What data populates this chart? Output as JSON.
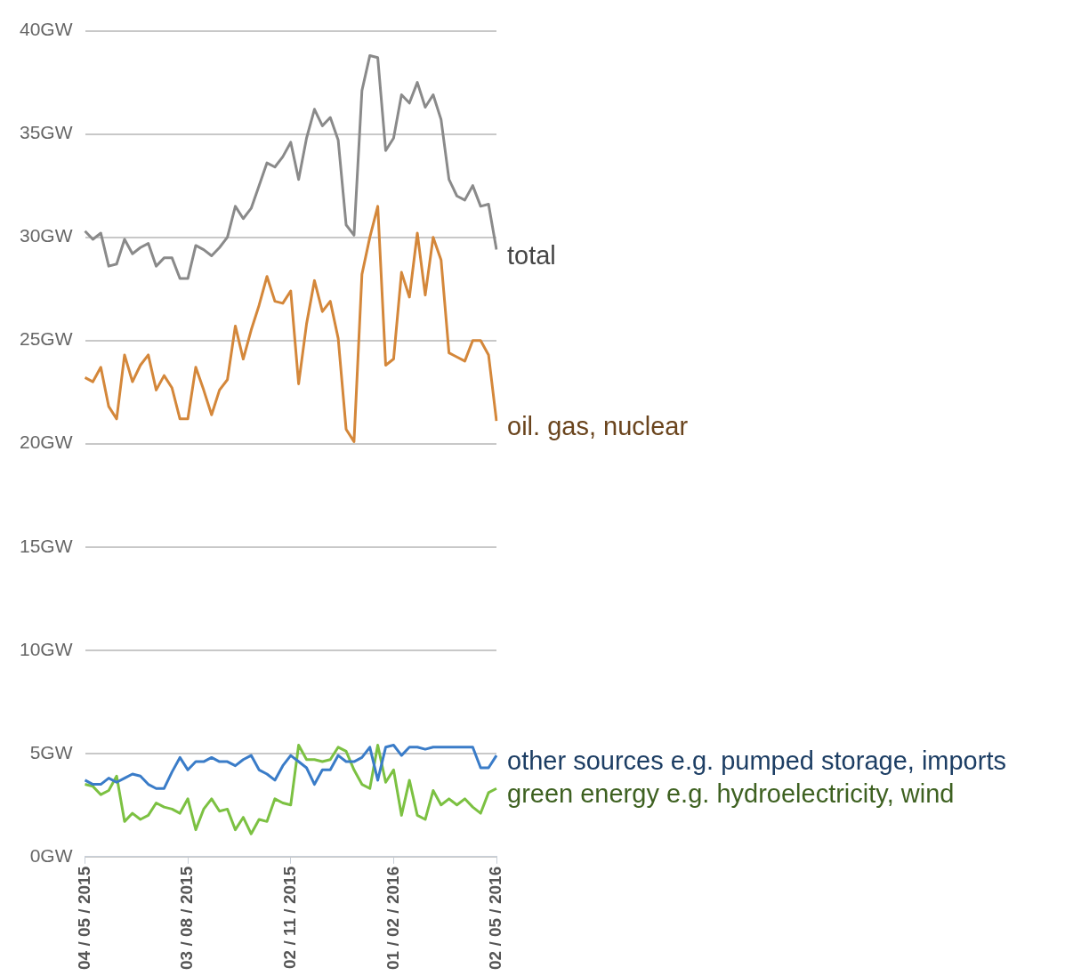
{
  "chart_data": {
    "type": "line",
    "categories": [
      "04 / 05 / 2015",
      null,
      null,
      null,
      null,
      null,
      null,
      null,
      null,
      null,
      null,
      null,
      null,
      "03 / 08 / 2015",
      null,
      null,
      null,
      null,
      null,
      null,
      null,
      null,
      null,
      null,
      null,
      null,
      "02 / 11 / 2015",
      null,
      null,
      null,
      null,
      null,
      null,
      null,
      null,
      null,
      null,
      null,
      null,
      "01 / 02 / 2016",
      null,
      null,
      null,
      null,
      null,
      null,
      null,
      null,
      null,
      null,
      null,
      null,
      "02 / 05 / 2016"
    ],
    "series": [
      {
        "name": "total",
        "color": "#8a8a8a",
        "values": [
          30.3,
          29.9,
          30.2,
          28.6,
          28.7,
          29.9,
          29.2,
          29.5,
          29.7,
          28.6,
          29.0,
          29.0,
          28.0,
          28.0,
          29.6,
          29.4,
          29.1,
          29.5,
          30.0,
          31.5,
          30.9,
          31.4,
          32.5,
          33.6,
          33.4,
          33.9,
          34.6,
          32.8,
          34.8,
          36.2,
          35.4,
          35.8,
          34.7,
          30.6,
          30.1,
          37.1,
          38.8,
          38.7,
          34.2,
          34.8,
          36.9,
          36.5,
          37.5,
          36.3,
          36.9,
          35.7,
          32.8,
          32.0,
          31.8,
          32.5,
          31.5,
          31.6,
          29.4
        ]
      },
      {
        "name": "oil. gas, nuclear",
        "color": "#d4873a",
        "values": [
          23.2,
          23.0,
          23.7,
          21.8,
          21.2,
          24.3,
          23.0,
          23.8,
          24.3,
          22.6,
          23.3,
          22.7,
          21.2,
          21.2,
          23.7,
          22.6,
          21.4,
          22.6,
          23.1,
          25.7,
          24.1,
          25.5,
          26.7,
          28.1,
          26.9,
          26.8,
          27.4,
          22.9,
          25.8,
          27.9,
          26.4,
          26.9,
          25.1,
          20.7,
          20.1,
          28.2,
          30.0,
          31.5,
          23.8,
          24.1,
          28.3,
          27.1,
          30.2,
          27.2,
          30.0,
          28.9,
          24.4,
          24.2,
          24.0,
          25.0,
          25.0,
          24.3,
          21.1
        ]
      },
      {
        "name": "other sources e.g. pumped storage, imports",
        "color": "#3a7cc8",
        "values": [
          3.7,
          3.5,
          3.5,
          3.8,
          3.6,
          3.8,
          4.0,
          3.9,
          3.5,
          3.3,
          3.3,
          4.1,
          4.8,
          4.2,
          4.6,
          4.6,
          4.8,
          4.6,
          4.6,
          4.4,
          4.7,
          4.9,
          4.2,
          4.0,
          3.7,
          4.4,
          4.9,
          4.6,
          4.3,
          3.5,
          4.2,
          4.2,
          4.9,
          4.6,
          4.6,
          4.8,
          5.3,
          3.7,
          5.3,
          5.4,
          4.9,
          5.3,
          5.3,
          5.2,
          5.3,
          5.3,
          5.3,
          5.3,
          5.3,
          5.3,
          4.3,
          4.3,
          4.9
        ]
      },
      {
        "name": "green energy e.g. hydroelectricity, wind",
        "color": "#7cc142",
        "values": [
          3.5,
          3.4,
          3.0,
          3.2,
          3.9,
          1.7,
          2.1,
          1.8,
          2.0,
          2.6,
          2.4,
          2.3,
          2.1,
          2.8,
          1.3,
          2.3,
          2.8,
          2.2,
          2.3,
          1.3,
          1.9,
          1.1,
          1.8,
          1.7,
          2.8,
          2.6,
          2.5,
          5.4,
          4.7,
          4.7,
          4.6,
          4.7,
          5.3,
          5.1,
          4.2,
          3.5,
          3.3,
          5.4,
          3.6,
          4.2,
          2.0,
          3.7,
          2.0,
          1.8,
          3.2,
          2.5,
          2.8,
          2.5,
          2.8,
          2.4,
          2.1,
          3.1,
          3.3
        ]
      }
    ],
    "ylim": [
      0,
      40
    ],
    "yticks": [
      {
        "value": 0,
        "label": "0GW"
      },
      {
        "value": 5,
        "label": "5GW"
      },
      {
        "value": 10,
        "label": "10GW"
      },
      {
        "value": 15,
        "label": "15GW"
      },
      {
        "value": 20,
        "label": "20GW"
      },
      {
        "value": 25,
        "label": "25GW"
      },
      {
        "value": 30,
        "label": "30GW"
      },
      {
        "value": 35,
        "label": "35GW"
      },
      {
        "value": 40,
        "label": "40GW"
      }
    ],
    "grid": "y",
    "legend": false,
    "marker": "none",
    "line_style": "solid"
  }
}
